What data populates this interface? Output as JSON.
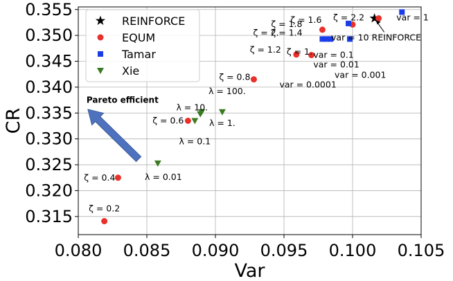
{
  "chart_data": {
    "type": "scatter",
    "xlabel": "Var",
    "ylabel": "CR",
    "xlim": [
      0.08,
      0.105
    ],
    "ylim": [
      0.3115,
      0.3555
    ],
    "xticks": [
      0.08,
      0.085,
      0.09,
      0.095,
      0.1,
      0.105
    ],
    "xtick_labels": [
      "0.080",
      "0.085",
      "0.090",
      "0.095",
      "0.100",
      "0.105"
    ],
    "yticks": [
      0.315,
      0.32,
      0.325,
      0.33,
      0.335,
      0.34,
      0.345,
      0.35,
      0.355
    ],
    "ytick_labels": [
      "0.315",
      "0.320",
      "0.325",
      "0.330",
      "0.335",
      "0.340",
      "0.345",
      "0.350",
      "0.355"
    ],
    "grid": true,
    "legend_position": "top-left",
    "colors": {
      "REINFORCE": "#000000",
      "EQUM": "#e8312a",
      "Tamar": "#1a3de8",
      "Xie": "#3a7a22",
      "arrow": "#4e72be"
    },
    "series": [
      {
        "name": "REINFORCE",
        "marker": "star",
        "points": [
          {
            "x": 0.1016,
            "y": 0.3533
          }
        ]
      },
      {
        "name": "EQUM",
        "marker": "circle",
        "points": [
          {
            "x": 0.0819,
            "y": 0.3141
          },
          {
            "x": 0.0829,
            "y": 0.3225
          },
          {
            "x": 0.088,
            "y": 0.3335
          },
          {
            "x": 0.0928,
            "y": 0.3415
          },
          {
            "x": 0.0959,
            "y": 0.3463
          },
          {
            "x": 0.097,
            "y": 0.3462
          },
          {
            "x": 0.0978,
            "y": 0.3511
          },
          {
            "x": 0.1,
            "y": 0.3521
          },
          {
            "x": 0.1019,
            "y": 0.3533
          }
        ]
      },
      {
        "name": "Tamar",
        "marker": "square",
        "points": [
          {
            "x": 0.0978,
            "y": 0.3493
          },
          {
            "x": 0.0981,
            "y": 0.3493
          },
          {
            "x": 0.0984,
            "y": 0.3493
          },
          {
            "x": 0.0997,
            "y": 0.3523
          },
          {
            "x": 0.0998,
            "y": 0.3493
          },
          {
            "x": 0.1036,
            "y": 0.3545
          }
        ]
      },
      {
        "name": "Xie",
        "marker": "triangle",
        "points": [
          {
            "x": 0.0858,
            "y": 0.3253
          },
          {
            "x": 0.0885,
            "y": 0.3335
          },
          {
            "x": 0.0889,
            "y": 0.3348
          },
          {
            "x": 0.089,
            "y": 0.3352
          },
          {
            "x": 0.0905,
            "y": 0.3352
          }
        ]
      }
    ],
    "annotations": [
      {
        "text": "ζ = 0.2",
        "x": 0.0819,
        "y": 0.3141
      },
      {
        "text": "ζ = 0.4",
        "x": 0.0829,
        "y": 0.3225
      },
      {
        "text": "ζ = 0.6",
        "x": 0.088,
        "y": 0.3335
      },
      {
        "text": "ζ = 0.8",
        "x": 0.0928,
        "y": 0.3415
      },
      {
        "text": "ζ = 1.",
        "x": 0.0959,
        "y": 0.3463
      },
      {
        "text": "ζ = 1.2",
        "x": 0.0959,
        "y": 0.3463
      },
      {
        "text": "ζ = 1.4",
        "x": 0.097,
        "y": 0.3493
      },
      {
        "text": "ζ = 2.",
        "x": 0.097,
        "y": 0.3493
      },
      {
        "text": "ζ = 1.8",
        "x": 0.0978,
        "y": 0.3511
      },
      {
        "text": "ζ = 1.6",
        "x": 0.0978,
        "y": 0.3511
      },
      {
        "text": "ζ = 2.2",
        "x": 0.1,
        "y": 0.3521
      },
      {
        "text": "var = 10",
        "x": 0.0998,
        "y": 0.3493
      },
      {
        "text": "var = 1",
        "x": 0.1036,
        "y": 0.3545
      },
      {
        "text": "var = 0.1",
        "x": 0.0984,
        "y": 0.3493
      },
      {
        "text": "var = 0.01",
        "x": 0.0981,
        "y": 0.3493
      },
      {
        "text": "var = 0.001",
        "x": 0.0998,
        "y": 0.3493
      },
      {
        "text": "var = 0.0001",
        "x": 0.0978,
        "y": 0.3493
      },
      {
        "text": "REINFORCE",
        "x": 0.1016,
        "y": 0.3533
      },
      {
        "text": "λ = 10.",
        "x": 0.0885,
        "y": 0.3335
      },
      {
        "text": "λ = 100.",
        "x": 0.0905,
        "y": 0.3352
      },
      {
        "text": "λ = 1.",
        "x": 0.0905,
        "y": 0.3352
      },
      {
        "text": "λ = 0.1",
        "x": 0.0885,
        "y": 0.3335
      },
      {
        "text": "λ = 0.01",
        "x": 0.0858,
        "y": 0.3253
      },
      {
        "text": "Pareto efficient",
        "x": 0.0806,
        "y": 0.337
      }
    ],
    "arrow": {
      "from": {
        "x": 0.0844,
        "y": 0.3261
      },
      "to": {
        "x": 0.0807,
        "y": 0.3357
      }
    }
  }
}
